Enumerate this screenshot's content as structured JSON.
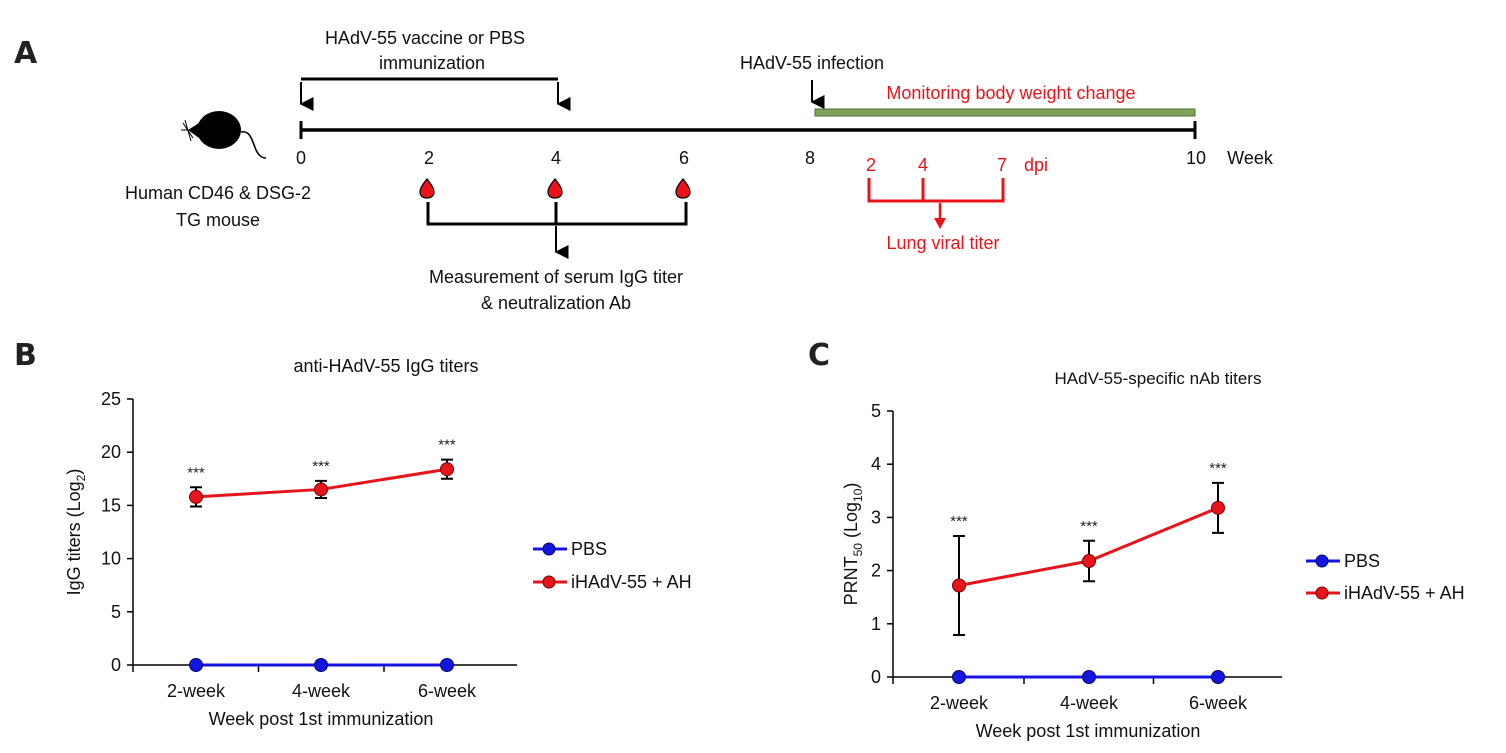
{
  "panels": {
    "a": "A",
    "b": "B",
    "c": "C"
  },
  "schematic": {
    "immunization_line1": "HAdV-55 vaccine or PBS",
    "immunization_line2": "immunization",
    "infection": "HAdV-55 infection",
    "monitoring": "Monitoring body weight change",
    "week_ticks": [
      "0",
      "2",
      "4",
      "6",
      "8",
      "10"
    ],
    "week_unit": "Week",
    "mouse_line1": "Human CD46 & DSG-2",
    "mouse_line2": "TG mouse",
    "measure_line1": "Measurement of serum IgG titer",
    "measure_line2": "& neutralization Ab",
    "dpi_ticks": [
      "2",
      "4",
      "7"
    ],
    "dpi_unit": "dpi",
    "lung": "Lung viral titer",
    "colors": {
      "red": "#e8141b",
      "green_bar": "#7fa35a",
      "black": "#000000"
    }
  },
  "chart_data": [
    {
      "type": "line",
      "title": "anti-HAdV-55 IgG titers",
      "ylabel": "IgG titers (Log",
      "ylabel_sub": "2",
      "ylabel_end": ")",
      "xlabel": "Week post 1st immunization",
      "categories": [
        "2-week",
        "4-week",
        "6-week"
      ],
      "ylim": [
        0,
        25
      ],
      "yticks": [
        "0",
        "5",
        "10",
        "15",
        "20",
        "25"
      ],
      "series": [
        {
          "name": "PBS",
          "color": "#1515e0",
          "values": [
            0,
            0,
            0
          ],
          "err": [
            0,
            0,
            0
          ]
        },
        {
          "name": "iHAdV-55 + AH",
          "color": "#e8141b",
          "values": [
            15.8,
            16.5,
            18.4
          ],
          "err": [
            0.9,
            0.8,
            0.9
          ]
        }
      ],
      "significance": [
        "***",
        "***",
        "***"
      ],
      "legend": "right"
    },
    {
      "type": "line",
      "title": "HAdV-55-specific nAb titers",
      "ylabel": "PRNT",
      "ylabel_sub": "50",
      "ylabel_mid": " (Log",
      "ylabel_sub2": "10",
      "ylabel_end": ")",
      "xlabel": "Week post 1st immunization",
      "categories": [
        "2-week",
        "4-week",
        "6-week"
      ],
      "ylim": [
        0,
        5
      ],
      "yticks": [
        "0",
        "1",
        "2",
        "3",
        "4",
        "5"
      ],
      "series": [
        {
          "name": "PBS",
          "color": "#1515e0",
          "values": [
            0,
            0,
            0
          ],
          "err": [
            0,
            0,
            0
          ]
        },
        {
          "name": "iHAdV-55 + AH",
          "color": "#e8141b",
          "values": [
            1.72,
            2.18,
            3.18
          ],
          "err": [
            0.93,
            0.38,
            0.47
          ]
        }
      ],
      "significance": [
        "***",
        "***",
        "***"
      ],
      "legend": "right"
    }
  ]
}
